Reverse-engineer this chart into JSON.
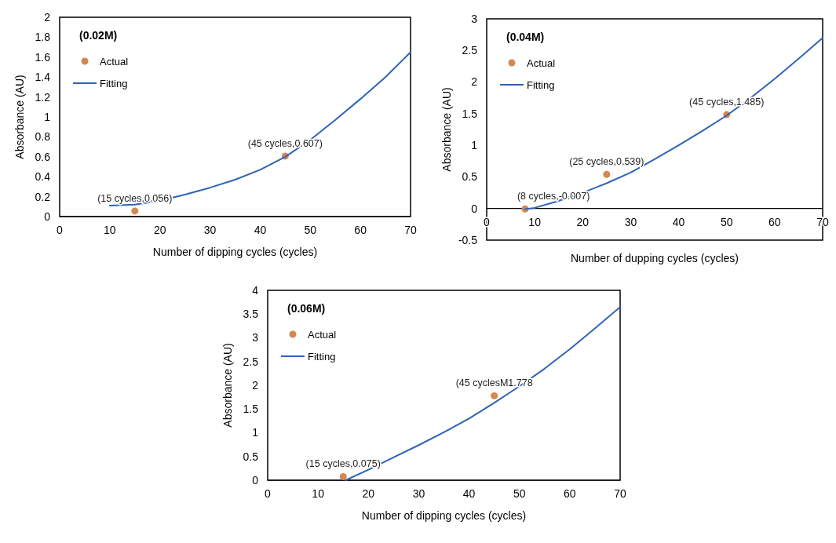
{
  "chart_data": [
    {
      "type": "scatter",
      "legend_title": "(0.02M)",
      "xlabel": "Number of dipping cycles (cycles)",
      "ylabel": "Absorbance (AU)",
      "xlim": [
        0,
        70
      ],
      "xticks": [
        0,
        10,
        20,
        30,
        40,
        50,
        60,
        70
      ],
      "ylim": [
        0,
        2
      ],
      "yticks": [
        0,
        0.2,
        0.4,
        0.6,
        0.8,
        1,
        1.2,
        1.4,
        1.6,
        1.8,
        2
      ],
      "legend": "top left",
      "grid": false,
      "series": [
        {
          "name": "Actual",
          "color": "#d4874f",
          "marker": "circle",
          "x": [
            15,
            45
          ],
          "values": [
            0.056,
            0.607
          ]
        },
        {
          "name": "Fitting",
          "type": "line",
          "color": "#2e63b8",
          "marker": "none",
          "x": [
            10,
            15,
            20,
            25,
            30,
            35,
            40,
            45,
            50,
            55,
            60,
            65,
            70
          ],
          "values": [
            0.11,
            0.12,
            0.16,
            0.22,
            0.29,
            0.37,
            0.47,
            0.6,
            0.77,
            0.97,
            1.18,
            1.4,
            1.65
          ]
        }
      ],
      "annotations": [
        {
          "text": "(15 cycles,0.056)",
          "x": 15,
          "y": 0.056
        },
        {
          "text": "(45 cycles,0.607)",
          "x": 45,
          "y": 0.607
        }
      ]
    },
    {
      "type": "scatter",
      "legend_title": "(0.04M)",
      "xlabel": "Number of dupping cycles (cycles)",
      "ylabel": "Absorbance (AU)",
      "xlim": [
        0,
        70
      ],
      "xticks": [
        0,
        10,
        20,
        30,
        40,
        50,
        60,
        70
      ],
      "ylim": [
        -0.5,
        3
      ],
      "yticks": [
        -0.5,
        0,
        0.5,
        1,
        1.5,
        2,
        2.5,
        3
      ],
      "legend": "top left",
      "grid": false,
      "series": [
        {
          "name": "Actual",
          "color": "#d4874f",
          "marker": "circle",
          "x": [
            8,
            25,
            50
          ],
          "values": [
            -0.007,
            0.539,
            1.485
          ]
        },
        {
          "name": "Fitting",
          "type": "line",
          "color": "#2e63b8",
          "marker": "none",
          "x": [
            8,
            10,
            15,
            20,
            25,
            30,
            35,
            40,
            45,
            50,
            55,
            60,
            65,
            70
          ],
          "values": [
            -0.01,
            0.01,
            0.12,
            0.25,
            0.4,
            0.57,
            0.78,
            1.0,
            1.23,
            1.47,
            1.75,
            2.05,
            2.37,
            2.7
          ]
        }
      ],
      "annotations": [
        {
          "text": "(8 cycles,-0.007)",
          "x": 8,
          "y": -0.007
        },
        {
          "text": "(25 cycles,0.539)",
          "x": 25,
          "y": 0.539
        },
        {
          "text": "(45 cycles,1.485)",
          "x": 50,
          "y": 1.485
        }
      ]
    },
    {
      "type": "scatter",
      "legend_title": "(0.06M)",
      "xlabel": "Number of dipping cycles (cycles)",
      "ylabel": "Absorbance (AU)",
      "xlim": [
        0,
        70
      ],
      "xticks": [
        0,
        10,
        20,
        30,
        40,
        50,
        60,
        70
      ],
      "ylim": [
        0,
        4
      ],
      "yticks": [
        0,
        0.5,
        1,
        1.5,
        2,
        2.5,
        3,
        3.5,
        4
      ],
      "legend": "top left",
      "grid": false,
      "series": [
        {
          "name": "Actual",
          "color": "#d4874f",
          "marker": "circle",
          "x": [
            15,
            45
          ],
          "values": [
            0.075,
            1.778
          ]
        },
        {
          "name": "Fitting",
          "type": "line",
          "color": "#2e63b8",
          "marker": "none",
          "x": [
            15.5,
            20,
            25,
            30,
            35,
            40,
            45,
            50,
            55,
            60,
            65,
            70
          ],
          "values": [
            0,
            0.22,
            0.48,
            0.74,
            1.01,
            1.3,
            1.63,
            1.98,
            2.35,
            2.76,
            3.2,
            3.65
          ]
        }
      ],
      "annotations": [
        {
          "text": "(15 cycles,0.075)",
          "x": 15,
          "y": 0.075
        },
        {
          "text": "(45 cyclesM1.778",
          "x": 45,
          "y": 1.778
        }
      ]
    }
  ]
}
